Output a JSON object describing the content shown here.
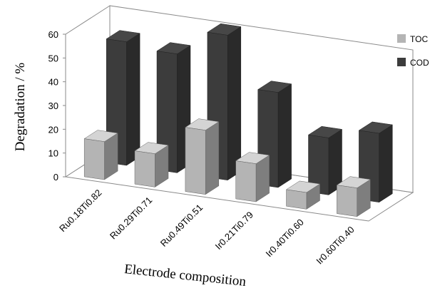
{
  "chart_data": {
    "type": "bar",
    "style": "3d-clustered-column",
    "categories": [
      "Ru0.18Ti0.82",
      "Ru0.29Ti0.71",
      "Ru0.49Ti0.51",
      "Ir0.21Ti0.79",
      "Ir0.40Ti0.60",
      "Ir0.60Ti0.40"
    ],
    "series": [
      {
        "name": "TOC",
        "values": [
          16,
          14,
          27,
          16,
          7,
          12
        ],
        "color": "#b4b4b4"
      },
      {
        "name": "COD",
        "values": [
          52,
          50,
          61,
          40,
          24,
          29
        ],
        "color": "#3c3c3c"
      }
    ],
    "xlabel": "Electrode composition",
    "ylabel": "Degradation / %",
    "ylim": [
      0,
      60
    ],
    "yticks": [
      0,
      10,
      20,
      30,
      40,
      50,
      60
    ],
    "grid": false,
    "legend_position": "right"
  }
}
